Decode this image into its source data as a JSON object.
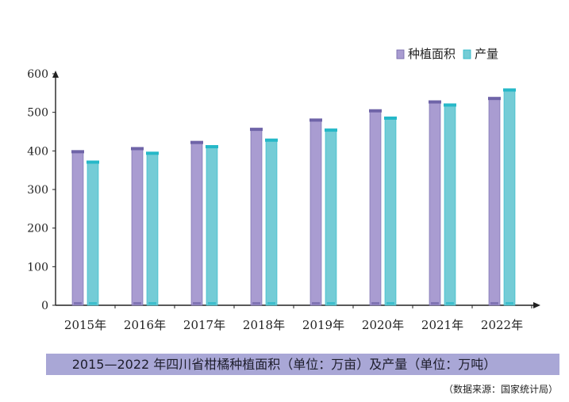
{
  "chart_data": {
    "type": "bar",
    "categories": [
      "2015年",
      "2016年",
      "2017年",
      "2018年",
      "2019年",
      "2020年",
      "2021年",
      "2022年"
    ],
    "series": [
      {
        "name": "种植面积",
        "values": [
          400,
          408,
          424,
          458,
          482,
          506,
          529,
          538
        ],
        "color": "#a99cd1",
        "cap_color": "#6f64a8"
      },
      {
        "name": "产量",
        "values": [
          373,
          396,
          413,
          430,
          456,
          487,
          521,
          560
        ],
        "color": "#74ccd6",
        "cap_color": "#26b8c8"
      }
    ],
    "ylim": [
      0,
      600
    ],
    "yticks": [
      "0",
      "100",
      "200",
      "300",
      "400",
      "500",
      "600"
    ],
    "grid": false,
    "legend": "top-right",
    "title": "2015—2022 年四川省柑橘种植面积（单位：万亩）及产量（单位：万吨）",
    "source": "（数据来源：国家统计局）"
  }
}
